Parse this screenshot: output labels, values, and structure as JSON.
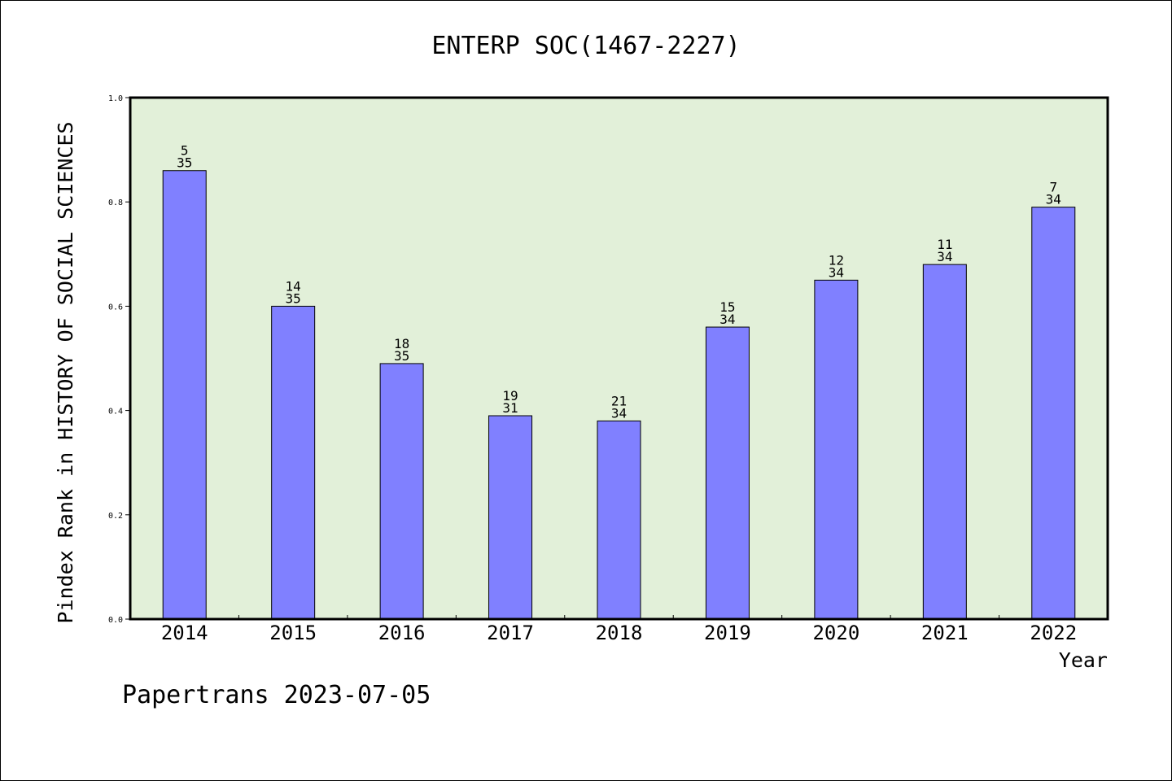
{
  "chart_data": {
    "type": "bar",
    "title": "ENTERP SOC(1467-2227)",
    "xlabel": "Year",
    "ylabel": "Pindex Rank in HISTORY OF SOCIAL SCIENCES",
    "ylim": [
      0,
      1.0
    ],
    "yticks": [
      "0.0",
      "0.2",
      "0.4",
      "0.6",
      "0.8",
      "1.0"
    ],
    "categories": [
      "2014",
      "2015",
      "2016",
      "2017",
      "2018",
      "2019",
      "2020",
      "2021",
      "2022"
    ],
    "values": [
      0.86,
      0.6,
      0.49,
      0.39,
      0.38,
      0.56,
      0.65,
      0.68,
      0.79
    ],
    "rank_labels": [
      "5",
      "14",
      "18",
      "19",
      "21",
      "15",
      "12",
      "11",
      "7"
    ],
    "total_labels": [
      "35",
      "35",
      "35",
      "31",
      "34",
      "34",
      "34",
      "34",
      "34"
    ],
    "grid": false,
    "colors": {
      "bar": "#8080ff",
      "plot_bg": "#e2f0d9",
      "axis": "#000000"
    }
  },
  "footer": {
    "text": "Papertrans 2023-07-05"
  }
}
